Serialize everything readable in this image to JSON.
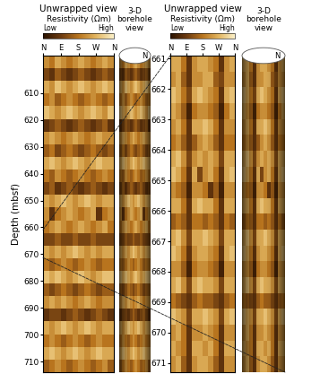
{
  "chart_data": [
    {
      "type": "heatmap",
      "title": "Unwrapped view",
      "side_title": "3-D\nborehole\nview",
      "borehole_marker": "N",
      "ylabel": "Depth (mbsf)",
      "colorbar": {
        "title": "Resistivity (Ωm)",
        "low": "Low",
        "high": "High",
        "range": [
          0,
          1
        ]
      },
      "xlim": [
        0,
        360
      ],
      "xticks": [
        {
          "value": 0,
          "label": "N"
        },
        {
          "value": 90,
          "label": "E"
        },
        {
          "value": 180,
          "label": "S"
        },
        {
          "value": 270,
          "label": "W"
        },
        {
          "value": 360,
          "label": "N"
        }
      ],
      "ylim": [
        714,
        596
      ],
      "yticks": [
        610,
        620,
        630,
        640,
        650,
        660,
        670,
        680,
        690,
        700,
        710
      ],
      "cells": [
        [
          0.6,
          0.5,
          0.7,
          0.6,
          0.5,
          0.6,
          0.7,
          0.6,
          0.5,
          0.6,
          0.7,
          0.6
        ],
        [
          0.3,
          0.2,
          0.4,
          0.3,
          0.2,
          0.3,
          0.4,
          0.3,
          0.2,
          0.3,
          0.4,
          0.3
        ],
        [
          0.7,
          0.6,
          0.8,
          0.7,
          0.6,
          0.7,
          0.8,
          0.7,
          0.6,
          0.7,
          0.8,
          0.7
        ],
        [
          0.5,
          0.6,
          0.4,
          0.5,
          0.6,
          0.5,
          0.4,
          0.5,
          0.6,
          0.5,
          0.4,
          0.5
        ],
        [
          0.8,
          0.7,
          0.6,
          0.7,
          0.8,
          0.7,
          0.6,
          0.7,
          0.8,
          0.7,
          0.6,
          0.8
        ],
        [
          0.2,
          0.3,
          0.4,
          0.3,
          0.2,
          0.3,
          0.4,
          0.3,
          0.2,
          0.3,
          0.4,
          0.2
        ],
        [
          0.6,
          0.7,
          0.6,
          0.5,
          0.6,
          0.7,
          0.6,
          0.5,
          0.6,
          0.7,
          0.6,
          0.6
        ],
        [
          0.4,
          0.5,
          0.3,
          0.4,
          0.5,
          0.4,
          0.3,
          0.4,
          0.5,
          0.4,
          0.3,
          0.4
        ],
        [
          0.7,
          0.8,
          0.7,
          0.6,
          0.7,
          0.8,
          0.7,
          0.6,
          0.7,
          0.8,
          0.7,
          0.7
        ],
        [
          0.5,
          0.4,
          0.6,
          0.5,
          0.4,
          0.5,
          0.6,
          0.5,
          0.4,
          0.5,
          0.6,
          0.5
        ],
        [
          0.3,
          0.4,
          0.2,
          0.3,
          0.4,
          0.3,
          0.2,
          0.3,
          0.4,
          0.3,
          0.2,
          0.3
        ],
        [
          0.7,
          0.6,
          0.7,
          0.8,
          0.7,
          0.6,
          0.7,
          0.8,
          0.7,
          0.6,
          0.7,
          0.7
        ],
        [
          0.6,
          0.2,
          0.5,
          0.6,
          0.7,
          0.6,
          0.5,
          0.6,
          0.7,
          0.2,
          0.5,
          0.6
        ],
        [
          0.5,
          0.6,
          0.7,
          0.6,
          0.5,
          0.6,
          0.7,
          0.6,
          0.5,
          0.6,
          0.7,
          0.5
        ],
        [
          0.3,
          0.3,
          0.4,
          0.3,
          0.3,
          0.4,
          0.3,
          0.3,
          0.4,
          0.3,
          0.3,
          0.3
        ],
        [
          0.7,
          0.6,
          0.7,
          0.6,
          0.7,
          0.8,
          0.7,
          0.6,
          0.7,
          0.6,
          0.7,
          0.7
        ],
        [
          0.5,
          0.4,
          0.5,
          0.6,
          0.5,
          0.4,
          0.5,
          0.6,
          0.5,
          0.4,
          0.5,
          0.5
        ],
        [
          0.8,
          0.7,
          0.8,
          0.7,
          0.6,
          0.7,
          0.8,
          0.7,
          0.6,
          0.7,
          0.8,
          0.8
        ],
        [
          0.4,
          0.3,
          0.4,
          0.5,
          0.4,
          0.3,
          0.4,
          0.5,
          0.4,
          0.3,
          0.4,
          0.4
        ],
        [
          0.6,
          0.7,
          0.6,
          0.7,
          0.6,
          0.5,
          0.6,
          0.7,
          0.6,
          0.5,
          0.6,
          0.6
        ],
        [
          0.2,
          0.3,
          0.3,
          0.2,
          0.3,
          0.4,
          0.3,
          0.2,
          0.3,
          0.4,
          0.3,
          0.2
        ],
        [
          0.7,
          0.6,
          0.7,
          0.8,
          0.7,
          0.6,
          0.7,
          0.8,
          0.7,
          0.6,
          0.7,
          0.7
        ],
        [
          0.5,
          0.6,
          0.5,
          0.4,
          0.5,
          0.6,
          0.5,
          0.4,
          0.5,
          0.6,
          0.5,
          0.5
        ],
        [
          0.7,
          0.8,
          0.7,
          0.6,
          0.7,
          0.8,
          0.7,
          0.6,
          0.7,
          0.8,
          0.7,
          0.7
        ],
        [
          0.4,
          0.5,
          0.6,
          0.5,
          0.4,
          0.5,
          0.6,
          0.5,
          0.4,
          0.5,
          0.6,
          0.4
        ]
      ]
    },
    {
      "type": "heatmap",
      "title": "Unwrapped view",
      "side_title": "3-D\nborehole\nview",
      "borehole_marker": "N",
      "colorbar": {
        "title": "Resistivity (Ωm)",
        "low": "Low",
        "high": "High",
        "range": [
          0,
          1
        ]
      },
      "xlim": [
        0,
        360
      ],
      "xticks": [
        {
          "value": 0,
          "label": "N"
        },
        {
          "value": 90,
          "label": "E"
        },
        {
          "value": 180,
          "label": "S"
        },
        {
          "value": 270,
          "label": "W"
        },
        {
          "value": 360,
          "label": "N"
        }
      ],
      "ylim": [
        671.3,
        660.9
      ],
      "yticks": [
        661,
        662,
        663,
        664,
        665,
        666,
        667,
        668,
        669,
        670,
        671
      ],
      "cells": [
        [
          0.7,
          0.7,
          0.5,
          0.2,
          0.6,
          0.7,
          0.7,
          0.6,
          0.5,
          0.2,
          0.6,
          0.7
        ],
        [
          0.6,
          0.7,
          0.4,
          0.2,
          0.6,
          0.6,
          0.7,
          0.7,
          0.4,
          0.3,
          0.6,
          0.6
        ],
        [
          0.8,
          0.7,
          0.5,
          0.3,
          0.7,
          0.8,
          0.7,
          0.6,
          0.5,
          0.2,
          0.7,
          0.8
        ],
        [
          0.7,
          0.6,
          0.4,
          0.1,
          0.5,
          0.6,
          0.6,
          0.5,
          0.4,
          0.1,
          0.5,
          0.7
        ],
        [
          0.6,
          0.7,
          0.5,
          0.2,
          0.7,
          0.7,
          0.8,
          0.7,
          0.5,
          0.2,
          0.6,
          0.6
        ],
        [
          0.5,
          0.6,
          0.4,
          0.2,
          0.4,
          0.6,
          0.7,
          0.6,
          0.4,
          0.2,
          0.5,
          0.5
        ],
        [
          0.7,
          0.8,
          0.6,
          0.3,
          0.6,
          0.7,
          0.6,
          0.7,
          0.6,
          0.3,
          0.7,
          0.7
        ],
        [
          0.8,
          0.7,
          0.5,
          0.2,
          0.7,
          0.3,
          0.6,
          0.7,
          0.5,
          0.2,
          0.7,
          0.8
        ],
        [
          0.6,
          0.5,
          0.4,
          0.1,
          0.6,
          0.6,
          0.5,
          0.2,
          0.4,
          0.1,
          0.6,
          0.6
        ],
        [
          0.7,
          0.7,
          0.5,
          0.2,
          0.7,
          0.8,
          0.7,
          0.7,
          0.5,
          0.2,
          0.7,
          0.7
        ],
        [
          0.4,
          0.5,
          0.4,
          0.2,
          0.5,
          0.5,
          0.4,
          0.5,
          0.4,
          0.2,
          0.5,
          0.4
        ],
        [
          0.7,
          0.8,
          0.6,
          0.3,
          0.7,
          0.7,
          0.8,
          0.7,
          0.6,
          0.3,
          0.7,
          0.7
        ],
        [
          0.8,
          0.7,
          0.5,
          0.2,
          0.6,
          0.7,
          0.7,
          0.6,
          0.5,
          0.2,
          0.7,
          0.8
        ],
        [
          0.6,
          0.6,
          0.4,
          0.1,
          0.5,
          0.6,
          0.6,
          0.5,
          0.4,
          0.1,
          0.6,
          0.6
        ],
        [
          0.7,
          0.8,
          0.6,
          0.3,
          0.7,
          0.8,
          0.7,
          0.7,
          0.6,
          0.3,
          0.7,
          0.7
        ],
        [
          0.5,
          0.4,
          0.3,
          0.2,
          0.4,
          0.5,
          0.4,
          0.4,
          0.3,
          0.2,
          0.4,
          0.5
        ],
        [
          0.8,
          0.7,
          0.6,
          0.3,
          0.7,
          0.7,
          0.8,
          0.7,
          0.6,
          0.3,
          0.7,
          0.8
        ],
        [
          0.6,
          0.7,
          0.5,
          0.2,
          0.6,
          0.6,
          0.7,
          0.6,
          0.5,
          0.2,
          0.6,
          0.6
        ],
        [
          0.7,
          0.6,
          0.5,
          0.2,
          0.7,
          0.7,
          0.6,
          0.7,
          0.5,
          0.2,
          0.7,
          0.7
        ],
        [
          0.6,
          0.7,
          0.4,
          0.2,
          0.6,
          0.7,
          0.7,
          0.6,
          0.4,
          0.2,
          0.6,
          0.6
        ]
      ]
    }
  ]
}
